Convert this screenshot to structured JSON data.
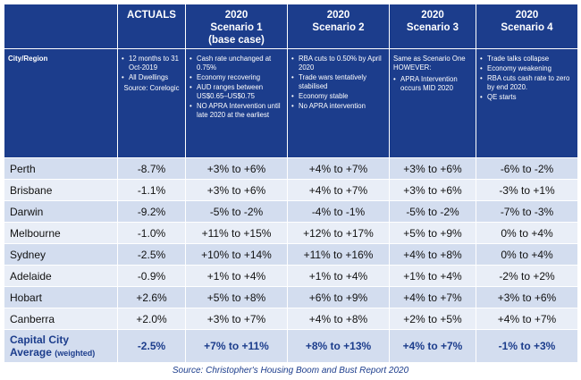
{
  "header": {
    "actuals": "ACTUALS",
    "scenarios": [
      {
        "year": "2020",
        "name": "Scenario 1",
        "sub": "(base case)"
      },
      {
        "year": "2020",
        "name": "Scenario 2",
        "sub": ""
      },
      {
        "year": "2020",
        "name": "Scenario 3",
        "sub": ""
      },
      {
        "year": "2020",
        "name": "Scenario 4",
        "sub": ""
      }
    ]
  },
  "descriptions": {
    "region_label": "City/Region",
    "actuals": {
      "bullets": [
        "12 months to 31 Oct-2019",
        "All Dwellings"
      ],
      "source": "Source: Corelogic"
    },
    "scenario1": [
      "Cash rate unchanged at 0.75%",
      "Economy recovering",
      "AUD ranges between US$0.65–US$0.75",
      "NO APRA Intervention until late 2020 at the earliest"
    ],
    "scenario2": [
      "RBA cuts to 0.50% by April 2020",
      "Trade wars tentatively stabilised",
      "Economy stable",
      "No APRA intervention"
    ],
    "scenario3": {
      "intro": "Same as Scenario One HOWEVER:",
      "bullets": [
        "APRA Intervention occurs MID 2020"
      ]
    },
    "scenario4": [
      "Trade talks collapse",
      "Economy weakening",
      "RBA cuts cash rate to zero by end 2020.",
      "QE starts"
    ]
  },
  "rows": [
    {
      "city": "Perth",
      "actual": "-8.7%",
      "s1": "+3% to +6%",
      "s2": "+4% to +7%",
      "s3": "+3% to +6%",
      "s4": "-6% to -2%"
    },
    {
      "city": "Brisbane",
      "actual": "-1.1%",
      "s1": "+3% to +6%",
      "s2": "+4% to +7%",
      "s3": "+3% to +6%",
      "s4": "-3% to +1%"
    },
    {
      "city": "Darwin",
      "actual": "-9.2%",
      "s1": "-5% to -2%",
      "s2": "-4% to -1%",
      "s3": "-5% to -2%",
      "s4": "-7% to -3%"
    },
    {
      "city": "Melbourne",
      "actual": "-1.0%",
      "s1": "+11% to +15%",
      "s2": "+12% to +17%",
      "s3": "+5% to +9%",
      "s4": "0% to +4%"
    },
    {
      "city": "Sydney",
      "actual": "-2.5%",
      "s1": "+10% to +14%",
      "s2": "+11% to +16%",
      "s3": "+4% to +8%",
      "s4": "0% to +4%"
    },
    {
      "city": "Adelaide",
      "actual": "-0.9%",
      "s1": "+1% to +4%",
      "s2": "+1% to +4%",
      "s3": "+1% to +4%",
      "s4": "-2% to +2%"
    },
    {
      "city": "Hobart",
      "actual": "+2.6%",
      "s1": "+5% to +8%",
      "s2": "+6% to +9%",
      "s3": "+4% to +7%",
      "s4": "+3% to +6%"
    },
    {
      "city": "Canberra",
      "actual": "+2.0%",
      "s1": "+3% to +7%",
      "s2": "+4% to +8%",
      "s3": "+2% to +5%",
      "s4": "+4% to +7%"
    }
  ],
  "total": {
    "city_line1": "Capital City",
    "city_line2": "Average",
    "weighted": "(weighted)",
    "actual": "-2.5%",
    "s1": "+7% to +11%",
    "s2": "+8% to +13%",
    "s3": "+4% to +7%",
    "s4": "-1% to +3%"
  },
  "source": "Source: Christopher's Housing Boom and Bust Report 2020"
}
